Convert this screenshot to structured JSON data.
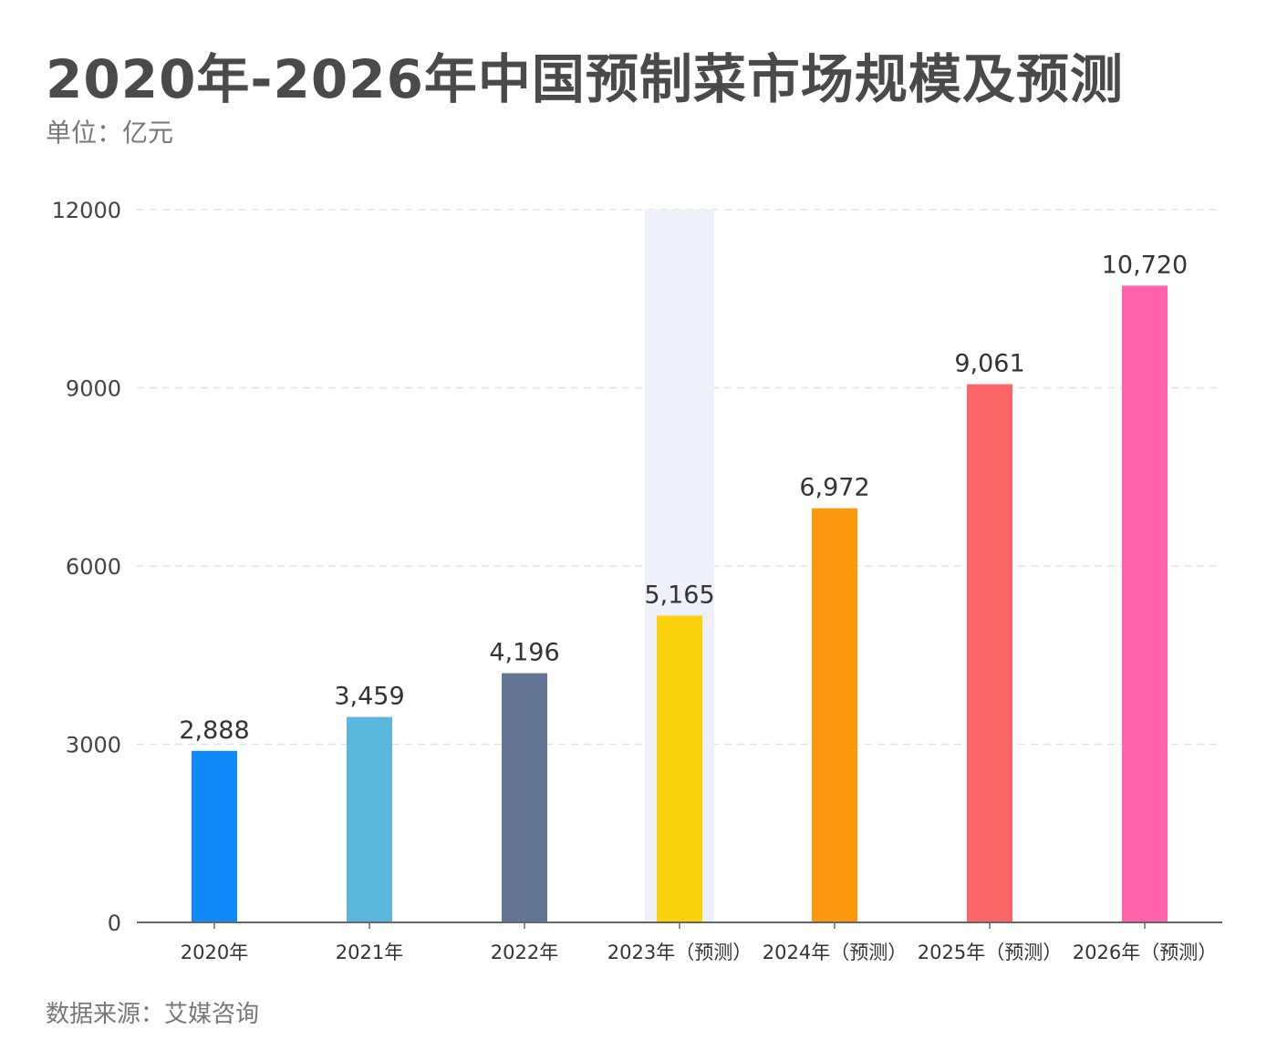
{
  "title": "2020年-2026年中国预制菜市场规模及预测",
  "unit_label": "单位：亿元",
  "source_label": "数据来源：艾媒咨询",
  "chart_data": {
    "type": "bar",
    "title": "2020年-2026年中国预制菜市场规模及预测",
    "xlabel": "",
    "ylabel": "",
    "ylim": [
      0,
      12000
    ],
    "yticks": [
      0,
      3000,
      6000,
      9000,
      12000
    ],
    "categories": [
      "2020年",
      "2021年",
      "2022年",
      "2023年（预测）",
      "2024年（预测）",
      "2025年（预测）",
      "2026年（预测）"
    ],
    "values": [
      2888,
      3459,
      4196,
      5165,
      6972,
      9061,
      10720
    ],
    "value_labels": [
      "2,888",
      "3,459",
      "4,196",
      "5,165",
      "6,972",
      "9,061",
      "10,720"
    ],
    "colors": [
      "#1289fb",
      "#5bb6db",
      "#637595",
      "#fcd20d",
      "#fb980e",
      "#fd6667",
      "#fd62aa"
    ],
    "highlighted_category": "2023年（预测）",
    "highlight_color": "#eef1f9",
    "grid": true,
    "grid_color": "#e3e3e3"
  }
}
